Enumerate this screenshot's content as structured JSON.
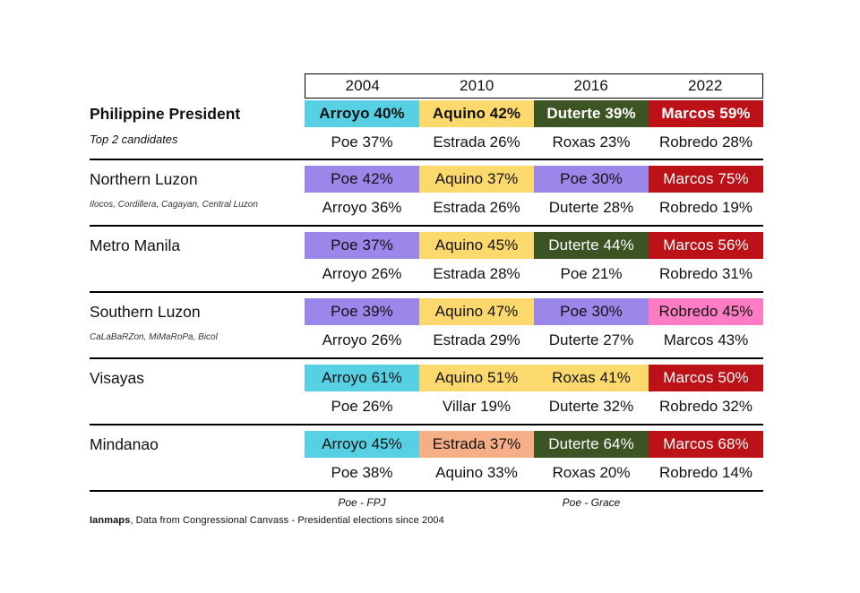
{
  "chart_data": {
    "type": "table",
    "title": "Philippine President",
    "subtitle": "Top 2 candidates",
    "years": [
      "2004",
      "2010",
      "2016",
      "2022"
    ],
    "regions": [
      {
        "label": "Philippine President",
        "sublabel": "Top 2 candidates",
        "cells": [
          {
            "winner": "Arroyo 40%",
            "runner_up": "Poe 37%",
            "bg": "#58D0E3",
            "fg": "#111111"
          },
          {
            "winner": "Aquino 42%",
            "runner_up": "Estrada 26%",
            "bg": "#FBD96D",
            "fg": "#111111"
          },
          {
            "winner": "Duterte 39%",
            "runner_up": "Roxas 23%",
            "bg": "#3C5323",
            "fg": "#FFFFFF"
          },
          {
            "winner": "Marcos 59%",
            "runner_up": "Robredo 28%",
            "bg": "#BC1117",
            "fg": "#FFFFFF"
          }
        ]
      },
      {
        "label": "Northern Luzon",
        "sublabel": "Ilocos, Cordillera, Cagayan, Central Luzon",
        "cells": [
          {
            "winner": "Poe 42%",
            "runner_up": "Arroyo 36%",
            "bg": "#9B86E9",
            "fg": "#111111"
          },
          {
            "winner": "Aquino 37%",
            "runner_up": "Estrada 26%",
            "bg": "#FBD96D",
            "fg": "#111111"
          },
          {
            "winner": "Poe 30%",
            "runner_up": "Duterte 28%",
            "bg": "#9B86E9",
            "fg": "#111111"
          },
          {
            "winner": "Marcos 75%",
            "runner_up": "Robredo 19%",
            "bg": "#BC1117",
            "fg": "#FFFFFF"
          }
        ]
      },
      {
        "label": "Metro Manila",
        "sublabel": "",
        "cells": [
          {
            "winner": "Poe 37%",
            "runner_up": "Arroyo 26%",
            "bg": "#9B86E9",
            "fg": "#111111"
          },
          {
            "winner": "Aquino 45%",
            "runner_up": "Estrada 28%",
            "bg": "#FBD96D",
            "fg": "#111111"
          },
          {
            "winner": "Duterte 44%",
            "runner_up": "Poe 21%",
            "bg": "#3C5323",
            "fg": "#FFFFFF"
          },
          {
            "winner": "Marcos 56%",
            "runner_up": "Robredo 31%",
            "bg": "#BC1117",
            "fg": "#FFFFFF"
          }
        ]
      },
      {
        "label": "Southern Luzon",
        "sublabel": "CaLaBaRZon, MiMaRoPa, Bicol",
        "cells": [
          {
            "winner": "Poe 39%",
            "runner_up": "Arroyo 26%",
            "bg": "#9B86E9",
            "fg": "#111111"
          },
          {
            "winner": "Aquino 47%",
            "runner_up": "Estrada 29%",
            "bg": "#FBD96D",
            "fg": "#111111"
          },
          {
            "winner": "Poe 30%",
            "runner_up": "Duterte 27%",
            "bg": "#9B86E9",
            "fg": "#111111"
          },
          {
            "winner": "Robredo 45%",
            "runner_up": "Marcos 43%",
            "bg": "#FD7CC3",
            "fg": "#111111"
          }
        ]
      },
      {
        "label": "Visayas",
        "sublabel": "",
        "cells": [
          {
            "winner": "Arroyo 61%",
            "runner_up": "Poe 26%",
            "bg": "#58D0E3",
            "fg": "#111111"
          },
          {
            "winner": "Aquino 51%",
            "runner_up": "Villar 19%",
            "bg": "#FBD96D",
            "fg": "#111111"
          },
          {
            "winner": "Roxas 41%",
            "runner_up": "Duterte 32%",
            "bg": "#FBD96D",
            "fg": "#111111"
          },
          {
            "winner": "Marcos 50%",
            "runner_up": "Robredo 32%",
            "bg": "#BC1117",
            "fg": "#FFFFFF"
          }
        ]
      },
      {
        "label": "Mindanao",
        "sublabel": "",
        "cells": [
          {
            "winner": "Arroyo 45%",
            "runner_up": "Poe 38%",
            "bg": "#58D0E3",
            "fg": "#111111"
          },
          {
            "winner": "Estrada 37%",
            "runner_up": "Aquino 33%",
            "bg": "#F5AE85",
            "fg": "#111111"
          },
          {
            "winner": "Duterte 64%",
            "runner_up": "Roxas 20%",
            "bg": "#3C5323",
            "fg": "#FFFFFF"
          },
          {
            "winner": "Marcos 68%",
            "runner_up": "Robredo 14%",
            "bg": "#BC1117",
            "fg": "#FFFFFF"
          }
        ]
      }
    ],
    "footnotes": [
      {
        "label": "Poe - FPJ",
        "under_year": "2004"
      },
      {
        "label": "Poe - Grace",
        "under_year": "2016"
      }
    ],
    "caption_source": "Ianmaps",
    "caption_rest": ", Data from Congressional Canvass - Presidential elections since 2004",
    "layout_colors": {
      "cyan": "#58D0E3",
      "yellow": "#FBD96D",
      "dark_green": "#3C5323",
      "dark_red": "#BC1117",
      "purple": "#9B86E9",
      "pink": "#FD7CC3",
      "peach": "#F5AE85"
    }
  }
}
